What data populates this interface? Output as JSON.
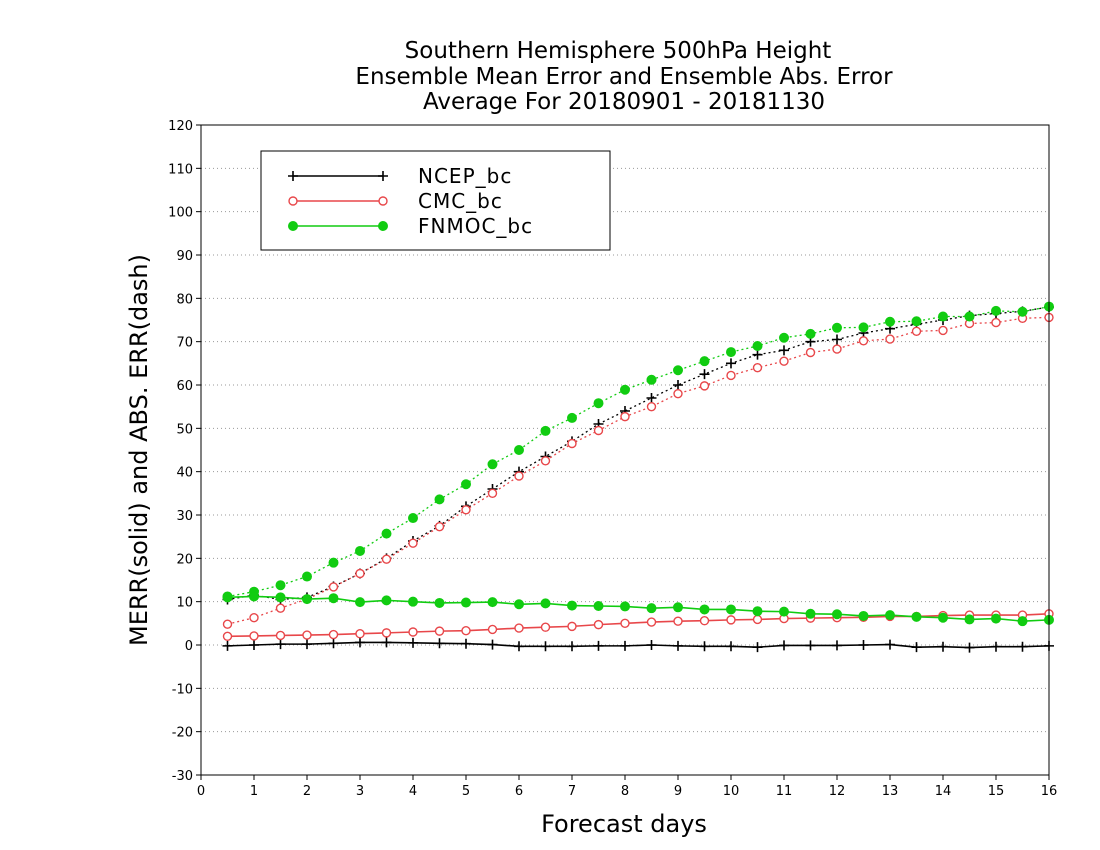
{
  "chart_data": {
    "type": "line",
    "title": [
      "Southern Hemisphere 500hPa Height",
      "Ensemble Mean Error and Ensemble Abs. Error",
      "Average For 20180901 - 20181130"
    ],
    "xlabel": "Forecast days",
    "ylabel": "MERR(solid) and ABS. ERR(dash)",
    "xlim": [
      0,
      16
    ],
    "ylim": [
      -30,
      120
    ],
    "xticks": [
      0,
      1,
      2,
      3,
      4,
      5,
      6,
      7,
      8,
      9,
      10,
      11,
      12,
      13,
      14,
      15,
      16
    ],
    "yticks": [
      -30,
      -20,
      -10,
      0,
      10,
      20,
      30,
      40,
      50,
      60,
      70,
      80,
      90,
      100,
      110,
      120
    ],
    "grid": "dotted horizontal",
    "legend_position": "top-left",
    "x": [
      0.5,
      1,
      1.5,
      2,
      2.5,
      3,
      3.5,
      4,
      4.5,
      5,
      5.5,
      6,
      6.5,
      7,
      7.5,
      8,
      8.5,
      9,
      9.5,
      10,
      10.5,
      11,
      11.5,
      12,
      12.5,
      13,
      13.5,
      14,
      14.5,
      15,
      15.5,
      16
    ],
    "series": [
      {
        "name": "NCEP_bc",
        "color": "#000000",
        "marker": "plus",
        "merr": [
          -0.2,
          0,
          0.2,
          0.2,
          0.4,
          0.6,
          0.6,
          0.5,
          0.4,
          0.3,
          0.1,
          -0.3,
          -0.3,
          -0.3,
          -0.2,
          -0.2,
          0,
          -0.2,
          -0.3,
          -0.3,
          -0.5,
          -0.1,
          -0.1,
          -0.1,
          0,
          0.1,
          -0.5,
          -0.4,
          -0.6,
          -0.4,
          -0.4,
          -0.2
        ],
        "abs_err": [
          10.5,
          11.5,
          10.5,
          11,
          13.5,
          16.5,
          20,
          24,
          27.5,
          32,
          36,
          40,
          43.5,
          47,
          51,
          54,
          57,
          60,
          62.5,
          65,
          67,
          68,
          70,
          70.5,
          72,
          73,
          74,
          75,
          76,
          76.5,
          77,
          78
        ]
      },
      {
        "name": "CMC_bc",
        "color": "#e8474a",
        "marker": "open-circle",
        "merr": [
          2,
          2.1,
          2.2,
          2.3,
          2.4,
          2.6,
          2.8,
          3,
          3.2,
          3.3,
          3.6,
          3.9,
          4.1,
          4.3,
          4.7,
          5,
          5.3,
          5.5,
          5.6,
          5.8,
          5.9,
          6.1,
          6.2,
          6.3,
          6.4,
          6.6,
          6.6,
          6.8,
          6.9,
          6.9,
          6.9,
          7.2
        ],
        "abs_err": [
          4.8,
          6.3,
          8.5,
          10.6,
          13.4,
          16.5,
          19.8,
          23.5,
          27.3,
          31.2,
          35,
          39,
          42.5,
          46.5,
          49.5,
          52.7,
          55,
          58,
          59.8,
          62.2,
          64,
          65.5,
          67.5,
          68.3,
          70.2,
          70.6,
          72.4,
          72.6,
          74.2,
          74.4,
          75.4,
          75.6
        ]
      },
      {
        "name": "FNMOC_bc",
        "color": "#11cc11",
        "marker": "filled-circle",
        "merr": [
          11,
          11.2,
          11,
          10.6,
          10.8,
          9.9,
          10.3,
          10,
          9.7,
          9.8,
          9.9,
          9.4,
          9.6,
          9.1,
          9,
          8.9,
          8.5,
          8.7,
          8.2,
          8.2,
          7.8,
          7.7,
          7.2,
          7.1,
          6.7,
          6.9,
          6.5,
          6.3,
          5.9,
          6.1,
          5.5,
          5.8
        ],
        "abs_err": [
          11.2,
          12.3,
          13.8,
          15.8,
          19,
          21.7,
          25.7,
          29.3,
          33.6,
          37.1,
          41.7,
          45,
          49.4,
          52.4,
          55.8,
          58.9,
          61.2,
          63.4,
          65.5,
          67.6,
          69,
          70.9,
          71.8,
          73.2,
          73.3,
          74.6,
          74.7,
          75.8,
          75.8,
          77.1,
          76.9,
          78.1
        ]
      }
    ]
  }
}
